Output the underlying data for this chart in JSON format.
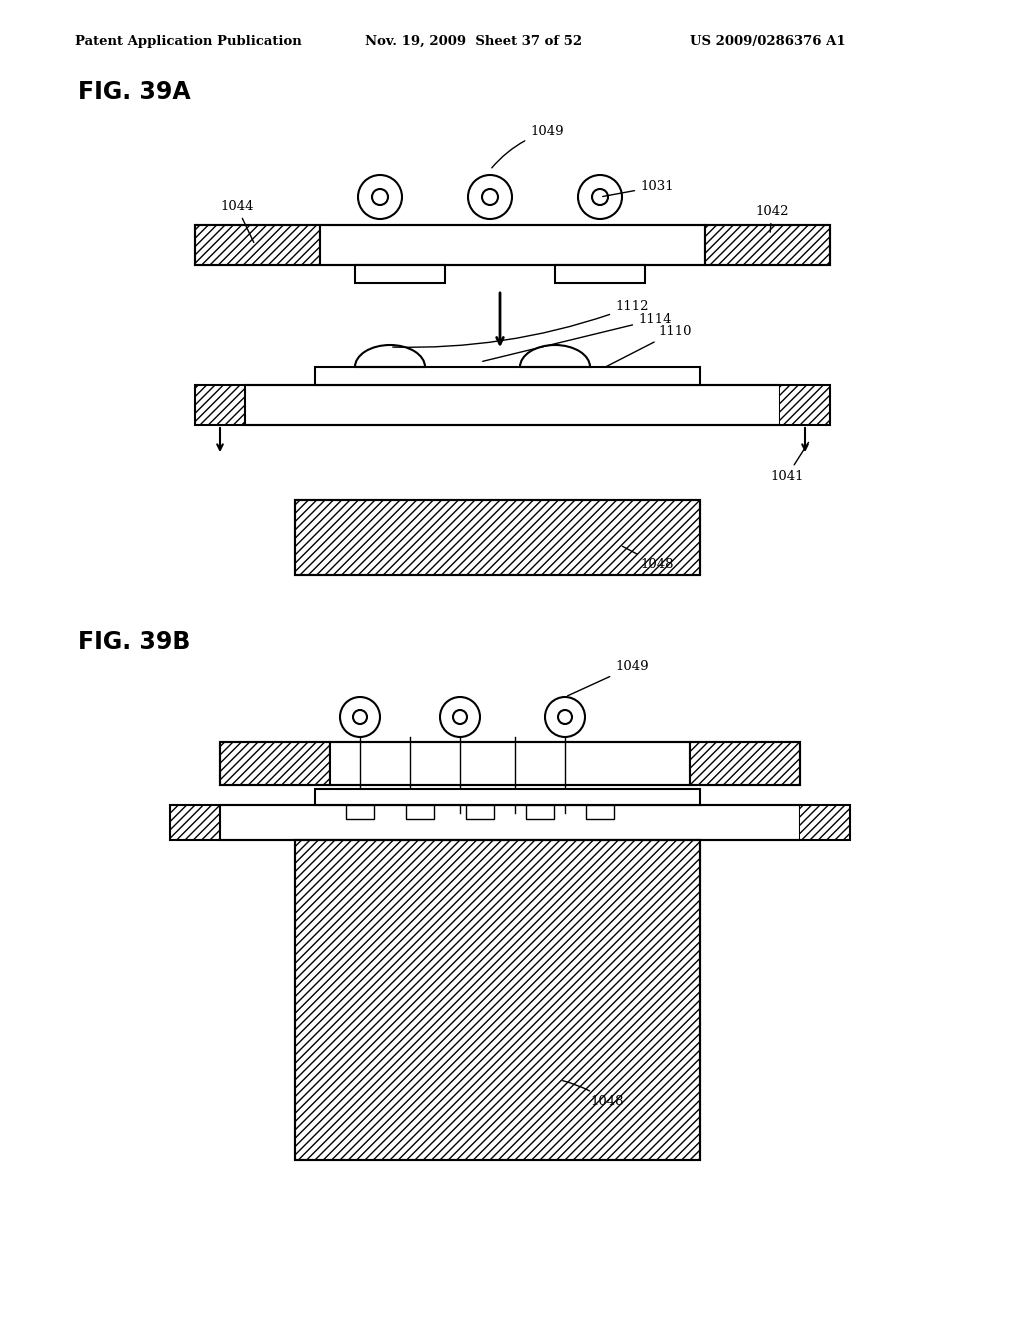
{
  "header_left": "Patent Application Publication",
  "header_mid": "Nov. 19, 2009  Sheet 37 of 52",
  "header_right": "US 2009/0286376 A1",
  "fig_label_A": "FIG. 39A",
  "fig_label_B": "FIG. 39B",
  "bg_color": "#ffffff",
  "line_color": "#000000"
}
